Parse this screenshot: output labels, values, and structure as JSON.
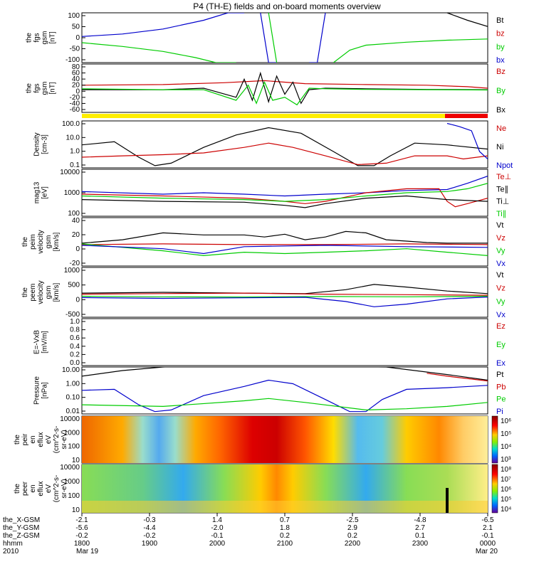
{
  "figure": {
    "title": "P4 (TH-E) fields and on-board moments overview"
  },
  "colors": {
    "black": "#000000",
    "red": "#cc0000",
    "green": "#00cc00",
    "blue": "#0000cc",
    "yellow": "#ffee00",
    "bar_red": "#ee0000"
  },
  "chart_data": [
    {
      "type": "line",
      "ylabel_lines": [
        "the",
        "fgs",
        "gsm",
        "[nT]"
      ],
      "yticks": [
        "100",
        "50",
        "0",
        "-50",
        "-100"
      ],
      "ylim": [
        -100,
        100
      ],
      "legend": [
        {
          "label": "Bt",
          "color": "#000000"
        },
        {
          "label": "bz",
          "color": "#cc0000"
        },
        {
          "label": "by",
          "color": "#00cc00"
        },
        {
          "label": "bx",
          "color": "#0000cc"
        }
      ],
      "series": [
        {
          "color": "#0000cc",
          "x": [
            0,
            0.1,
            0.2,
            0.3,
            0.36,
            0.38,
            0.4
          ],
          "y": [
            5,
            15,
            35,
            70,
            100,
            100,
            100
          ]
        },
        {
          "color": "#0000cc",
          "x": [
            0.44,
            0.46,
            0.48
          ],
          "y": [
            100,
            -100,
            -100
          ]
        },
        {
          "color": "#0000cc",
          "x": [
            0.56,
            0.58,
            0.6
          ],
          "y": [
            -100,
            -100,
            100
          ]
        },
        {
          "color": "#00cc00",
          "x": [
            0,
            0.1,
            0.2,
            0.28,
            0.33,
            0.36,
            0.38
          ],
          "y": [
            -20,
            -35,
            -55,
            -80,
            -100,
            -100,
            -100
          ]
        },
        {
          "color": "#00cc00",
          "x": [
            0.46,
            0.48
          ],
          "y": [
            100,
            -100
          ]
        },
        {
          "color": "#00cc00",
          "x": [
            0.62,
            0.66,
            0.7,
            0.8,
            0.9,
            1.0
          ],
          "y": [
            -100,
            -50,
            -30,
            -18,
            -10,
            -5
          ]
        },
        {
          "color": "#000000",
          "x": [
            0.9,
            0.95,
            1.0
          ],
          "y": [
            100,
            70,
            45
          ]
        }
      ]
    },
    {
      "type": "line",
      "ylabel_lines": [
        "the",
        "fgs",
        "gsm",
        "[nT]"
      ],
      "yticks": [
        "80",
        "60",
        "40",
        "20",
        "0",
        "-20",
        "-40",
        "-60"
      ],
      "ylim": [
        -70,
        90
      ],
      "legend": [
        {
          "label": "Bz",
          "color": "#cc0000"
        },
        {
          "label": "By",
          "color": "#00cc00"
        },
        {
          "label": "Bx",
          "color": "#000000"
        }
      ],
      "series": [
        {
          "color": "#cc0000",
          "x": [
            0,
            0.2,
            0.35,
            0.45,
            0.55,
            0.7,
            0.85,
            0.95,
            1.0
          ],
          "y": [
            20,
            22,
            28,
            35,
            25,
            22,
            20,
            15,
            10
          ]
        },
        {
          "color": "#000000",
          "x": [
            0,
            0.2,
            0.3,
            0.38,
            0.4,
            0.42,
            0.44,
            0.46,
            0.48,
            0.5,
            0.52,
            0.54,
            0.56,
            0.6,
            0.7,
            0.85,
            1.0
          ],
          "y": [
            5,
            5,
            10,
            -20,
            40,
            -30,
            60,
            -35,
            50,
            -10,
            30,
            -40,
            5,
            10,
            8,
            6,
            5
          ]
        },
        {
          "color": "#00cc00",
          "x": [
            0,
            0.2,
            0.3,
            0.38,
            0.41,
            0.43,
            0.45,
            0.47,
            0.5,
            0.53,
            0.56,
            0.6,
            0.7,
            0.85,
            1.0
          ],
          "y": [
            8,
            5,
            5,
            -30,
            20,
            -40,
            30,
            -30,
            -20,
            -45,
            10,
            8,
            6,
            5,
            4
          ]
        }
      ]
    },
    {
      "type": "line",
      "ylabel_lines": [
        "Density",
        "[cm-3]"
      ],
      "yticks": [
        "100.0",
        "10.0",
        "1.0",
        "0.1"
      ],
      "log": true,
      "ylim": [
        0.07,
        150
      ],
      "legend": [
        {
          "label": "Ne",
          "color": "#cc0000"
        },
        {
          "label": "Ni",
          "color": "#000000"
        },
        {
          "label": "Npot",
          "color": "#0000cc"
        }
      ],
      "series": [
        {
          "color": "#000000",
          "x": [
            0,
            0.08,
            0.14,
            0.18,
            0.22,
            0.3,
            0.38,
            0.46,
            0.54,
            0.62,
            0.68,
            0.72,
            0.76,
            0.82,
            0.9,
            1.0
          ],
          "y": [
            3,
            5,
            0.4,
            0.1,
            0.15,
            2,
            15,
            50,
            20,
            1,
            0.1,
            0.1,
            0.5,
            4,
            3,
            1.5
          ]
        },
        {
          "color": "#cc0000",
          "x": [
            0,
            0.1,
            0.2,
            0.3,
            0.4,
            0.46,
            0.52,
            0.6,
            0.68,
            0.75,
            0.82,
            0.9,
            0.94,
            1.0
          ],
          "y": [
            0.4,
            0.5,
            0.6,
            0.8,
            2,
            4,
            2,
            0.5,
            0.12,
            0.15,
            0.5,
            0.5,
            0.3,
            0.5
          ]
        },
        {
          "color": "#0000cc",
          "x": [
            0.9,
            0.93,
            0.96,
            0.98,
            1.0
          ],
          "y": [
            100,
            60,
            30,
            1,
            0.3
          ]
        }
      ]
    },
    {
      "type": "line",
      "ylabel_lines": [
        "mag13",
        "[eV]"
      ],
      "yticks": [
        "10000",
        "1000",
        "100"
      ],
      "log": true,
      "ylim": [
        30,
        12000
      ],
      "legend": [
        {
          "label": "Te⊥",
          "color": "#cc0000"
        },
        {
          "label": "Te∥",
          "color": "#000000"
        },
        {
          "label": "Ti⊥",
          "color": "#000000"
        },
        {
          "label": "Ti∥",
          "color": "#00cc00"
        }
      ],
      "series": [
        {
          "color": "#0000cc",
          "x": [
            0,
            0.2,
            0.3,
            0.4,
            0.5,
            0.6,
            0.7,
            0.8,
            0.9,
            0.95,
            1.0
          ],
          "y": [
            700,
            500,
            600,
            500,
            400,
            500,
            600,
            800,
            900,
            2000,
            5000
          ]
        },
        {
          "color": "#cc0000",
          "x": [
            0,
            0.2,
            0.4,
            0.5,
            0.55,
            0.6,
            0.7,
            0.8,
            0.88,
            0.9,
            0.92,
            0.95,
            1.0
          ],
          "y": [
            500,
            400,
            300,
            200,
            150,
            200,
            600,
            1000,
            1000,
            200,
            100,
            150,
            300
          ]
        },
        {
          "color": "#00cc00",
          "x": [
            0,
            0.2,
            0.4,
            0.5,
            0.6,
            0.7,
            0.8,
            0.9,
            0.95,
            1.0
          ],
          "y": [
            400,
            300,
            250,
            200,
            250,
            400,
            600,
            700,
            1000,
            2000
          ]
        },
        {
          "color": "#000000",
          "x": [
            0,
            0.2,
            0.4,
            0.5,
            0.55,
            0.6,
            0.7,
            0.8,
            0.9,
            1.0
          ],
          "y": [
            250,
            200,
            180,
            120,
            90,
            150,
            300,
            400,
            250,
            200
          ]
        }
      ]
    },
    {
      "type": "line",
      "ylabel_lines": [
        "the",
        "peim",
        "velocity",
        "gsm",
        "[km/s]"
      ],
      "yticks": [
        "40",
        "20",
        "0",
        "-20"
      ],
      "ylim": [
        -30,
        40
      ],
      "legend": [
        {
          "label": "Vt",
          "color": "#000000"
        },
        {
          "label": "Vz",
          "color": "#cc0000"
        },
        {
          "label": "Vy",
          "color": "#00cc00"
        },
        {
          "label": "Vx",
          "color": "#0000cc"
        }
      ],
      "series": [
        {
          "color": "#000000",
          "x": [
            0,
            0.1,
            0.2,
            0.3,
            0.4,
            0.45,
            0.5,
            0.55,
            0.6,
            0.65,
            0.7,
            0.75,
            0.8,
            0.85,
            0.9,
            1.0
          ],
          "y": [
            3,
            8,
            18,
            15,
            15,
            12,
            16,
            8,
            12,
            20,
            18,
            8,
            6,
            4,
            3,
            3
          ]
        },
        {
          "color": "#cc0000",
          "x": [
            0,
            0.2,
            0.4,
            0.6,
            0.8,
            1.0
          ],
          "y": [
            1,
            2,
            1,
            1,
            2,
            1
          ]
        },
        {
          "color": "#00cc00",
          "x": [
            0,
            0.2,
            0.3,
            0.4,
            0.5,
            0.6,
            0.7,
            0.8,
            0.9,
            1.0
          ],
          "y": [
            2,
            -8,
            -15,
            -10,
            -12,
            -10,
            -8,
            -5,
            -10,
            -15
          ]
        },
        {
          "color": "#0000cc",
          "x": [
            0,
            0.2,
            0.3,
            0.4,
            0.6,
            0.8,
            1.0
          ],
          "y": [
            0,
            -5,
            -12,
            -2,
            0,
            -2,
            -3
          ]
        }
      ]
    },
    {
      "type": "line",
      "ylabel_lines": [
        "the",
        "peem",
        "velocity",
        "gsm",
        "[km/s]"
      ],
      "yticks": [
        "1000",
        "500",
        "0",
        "-500"
      ],
      "ylim": [
        -800,
        1100
      ],
      "legend": [
        {
          "label": "Vt",
          "color": "#000000"
        },
        {
          "label": "Vz",
          "color": "#cc0000"
        },
        {
          "label": "Vy",
          "color": "#00cc00"
        },
        {
          "label": "Vx",
          "color": "#0000cc"
        }
      ],
      "series": [
        {
          "color": "#000000",
          "x": [
            0,
            0.2,
            0.4,
            0.55,
            0.65,
            0.72,
            0.8,
            0.9,
            1.0
          ],
          "y": [
            120,
            150,
            120,
            100,
            250,
            450,
            350,
            200,
            100
          ]
        },
        {
          "color": "#cc0000",
          "x": [
            0,
            0.2,
            0.4,
            0.6,
            0.8,
            1.0
          ],
          "y": [
            80,
            100,
            120,
            80,
            60,
            40
          ]
        },
        {
          "color": "#00cc00",
          "x": [
            0,
            0.2,
            0.4,
            0.6,
            0.8,
            1.0
          ],
          "y": [
            0,
            -20,
            -30,
            -10,
            -20,
            0
          ]
        },
        {
          "color": "#0000cc",
          "x": [
            0,
            0.2,
            0.4,
            0.55,
            0.65,
            0.72,
            0.8,
            0.9,
            1.0
          ],
          "y": [
            -50,
            -80,
            -60,
            -40,
            -200,
            -400,
            -300,
            -100,
            -30
          ]
        }
      ]
    },
    {
      "type": "line",
      "ylabel_lines": [
        "E=-VxB",
        "[mV/m]"
      ],
      "yticks": [
        "1.0",
        "0.8",
        "0.6",
        "0.4",
        "0.2",
        "0.0"
      ],
      "ylim": [
        0,
        1
      ],
      "legend": [
        {
          "label": "Ez",
          "color": "#cc0000"
        },
        {
          "label": "Ey",
          "color": "#00cc00"
        },
        {
          "label": "Ex",
          "color": "#0000cc"
        }
      ],
      "series": []
    },
    {
      "type": "line",
      "ylabel_lines": [
        "Pressure",
        "[nPa]"
      ],
      "yticks": [
        "10.00",
        "1.00",
        "0.10",
        "0.01"
      ],
      "log": true,
      "ylim": [
        0.004,
        15
      ],
      "legend": [
        {
          "label": "Pt",
          "color": "#000000"
        },
        {
          "label": "Pb",
          "color": "#cc0000"
        },
        {
          "label": "Pe",
          "color": "#00cc00"
        },
        {
          "label": "Pi",
          "color": "#0000cc"
        }
      ],
      "series": [
        {
          "color": "#000000",
          "x": [
            0,
            0.1,
            0.2,
            0.3,
            0.75,
            0.9,
            1.0
          ],
          "y": [
            3,
            8,
            15,
            20,
            15,
            4,
            1.5
          ]
        },
        {
          "color": "#cc0000",
          "x": [
            0.85,
            0.9,
            1.0
          ],
          "y": [
            5,
            3,
            1.3
          ]
        },
        {
          "color": "#0000cc",
          "x": [
            0,
            0.08,
            0.14,
            0.18,
            0.22,
            0.3,
            0.4,
            0.46,
            0.52,
            0.6,
            0.66,
            0.7,
            0.74,
            0.8,
            0.9,
            1.0
          ],
          "y": [
            0.25,
            0.3,
            0.02,
            0.006,
            0.008,
            0.1,
            0.5,
            1.5,
            0.8,
            0.05,
            0.006,
            0.006,
            0.05,
            0.3,
            0.4,
            0.6
          ]
        },
        {
          "color": "#00cc00",
          "x": [
            0,
            0.2,
            0.4,
            0.46,
            0.55,
            0.7,
            0.8,
            0.9,
            1.0
          ],
          "y": [
            0.02,
            0.015,
            0.04,
            0.06,
            0.03,
            0.008,
            0.01,
            0.015,
            0.03
          ]
        }
      ]
    },
    {
      "type": "heatmap",
      "ylabel_lines": [
        "the",
        "peir",
        "en",
        "eflux",
        "eV",
        "(cm^2-s-",
        "sr-eV)"
      ],
      "yticks": [
        "10000",
        "1000",
        "100",
        "10"
      ],
      "colorbar_ticks": [
        "10⁶",
        "10⁵",
        "10⁴",
        "10³"
      ]
    },
    {
      "type": "heatmap",
      "ylabel_lines": [
        "the",
        "peer",
        "en",
        "eflux",
        "eV",
        "(cm^2-s-",
        "sr-eV)"
      ],
      "yticks": [
        "10000",
        "1000",
        "100",
        "10"
      ],
      "colorbar_ticks": [
        "10⁸",
        "10⁷",
        "10⁶",
        "10⁵",
        "10⁴"
      ]
    }
  ],
  "xaxis": {
    "row_labels": [
      "the_X-GSM",
      "the_Y-GSM",
      "the_Z-GSM",
      "hhmm",
      "2010"
    ],
    "columns": [
      [
        "-2.1",
        "-5.6",
        "-0.2",
        "1800",
        "Mar 19"
      ],
      [
        "-0.3",
        "-4.4",
        "-0.2",
        "1900",
        ""
      ],
      [
        "1.4",
        "-2.0",
        "-0.1",
        "2000",
        ""
      ],
      [
        "0.7",
        "1.8",
        "0.2",
        "2100",
        ""
      ],
      [
        "-2.5",
        "2.9",
        "0.2",
        "2200",
        ""
      ],
      [
        "-4.8",
        "2.7",
        "0.1",
        "2300",
        ""
      ],
      [
        "-6.5",
        "2.1",
        "-0.1",
        "0000",
        "Mar 20"
      ]
    ]
  }
}
